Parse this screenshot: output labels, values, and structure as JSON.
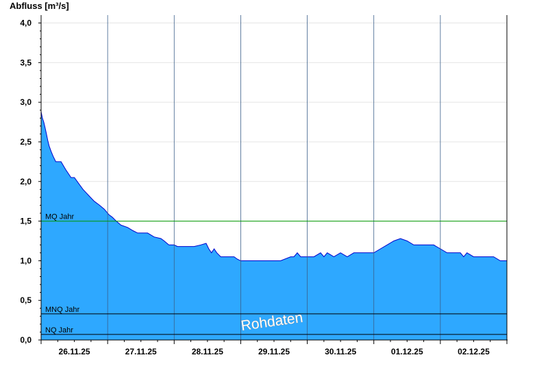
{
  "chart_data": {
    "type": "area",
    "title": "",
    "ylabel": "Abfluss [m³/s]",
    "xlabel": "",
    "ylim": [
      0,
      4.1
    ],
    "yticks": [
      "0,0",
      "0,5",
      "1,0",
      "1,5",
      "2,0",
      "2,5",
      "3,0",
      "3,5",
      "4,0"
    ],
    "x_ticks": [
      "26.11.25",
      "27.11.25",
      "28.11.25",
      "29.11.25",
      "30.11.25",
      "01.12.25",
      "02.12.25"
    ],
    "x_range_days": [
      0,
      7
    ],
    "grid": "horizontal light grey, vertical lines at midnight",
    "series": [
      {
        "x": [
          0.0,
          0.02,
          0.04,
          0.06,
          0.08,
          0.1,
          0.12,
          0.15,
          0.18,
          0.22,
          0.3,
          0.37,
          0.45,
          0.5,
          0.56,
          0.63,
          0.72,
          0.8,
          0.88,
          0.95,
          1.02,
          1.07,
          1.13,
          1.2,
          1.3,
          1.38,
          1.45,
          1.53,
          1.6,
          1.7,
          1.8,
          1.85,
          1.92,
          2.0,
          2.05,
          2.1,
          2.2,
          2.3,
          2.4,
          2.48,
          2.52,
          2.56,
          2.6,
          2.64,
          2.7,
          2.8,
          2.9,
          2.95,
          3.0,
          3.1,
          3.4,
          3.6,
          3.75,
          3.8,
          3.85,
          3.9,
          4.0,
          4.1,
          4.2,
          4.25,
          4.3,
          4.4,
          4.5,
          4.6,
          4.7,
          4.8,
          4.9,
          5.0,
          5.1,
          5.2,
          5.3,
          5.4,
          5.5,
          5.6,
          5.7,
          5.8,
          5.9,
          6.0,
          6.1,
          6.2,
          6.3,
          6.35,
          6.4,
          6.5,
          6.6,
          6.7,
          6.8,
          6.9,
          6.95,
          7.0
        ],
        "values": [
          2.88,
          2.8,
          2.75,
          2.68,
          2.6,
          2.52,
          2.45,
          2.38,
          2.32,
          2.25,
          2.25,
          2.15,
          2.05,
          2.05,
          1.98,
          1.9,
          1.82,
          1.75,
          1.7,
          1.65,
          1.58,
          1.55,
          1.5,
          1.45,
          1.42,
          1.38,
          1.35,
          1.35,
          1.35,
          1.3,
          1.28,
          1.25,
          1.2,
          1.2,
          1.18,
          1.18,
          1.18,
          1.18,
          1.2,
          1.22,
          1.15,
          1.1,
          1.15,
          1.1,
          1.05,
          1.05,
          1.05,
          1.02,
          1.0,
          1.0,
          1.0,
          1.0,
          1.05,
          1.05,
          1.1,
          1.05,
          1.05,
          1.05,
          1.1,
          1.05,
          1.1,
          1.05,
          1.1,
          1.05,
          1.1,
          1.1,
          1.1,
          1.1,
          1.15,
          1.2,
          1.25,
          1.28,
          1.25,
          1.2,
          1.2,
          1.2,
          1.2,
          1.15,
          1.1,
          1.1,
          1.1,
          1.05,
          1.1,
          1.05,
          1.05,
          1.05,
          1.05,
          1.0,
          1.0,
          1.0
        ]
      }
    ],
    "reference_lines": [
      {
        "label": "MQ Jahr",
        "value": 1.5,
        "color": "#009900"
      },
      {
        "label": "MNQ Jahr",
        "value": 0.33,
        "color": "#000000"
      },
      {
        "label": "NQ Jahr",
        "value": 0.07,
        "color": "#000000"
      }
    ],
    "watermark": "Rohdaten",
    "colors": {
      "fill": "#2ea8ff",
      "line": "#0000cc",
      "grid": "#e4e4e4"
    }
  }
}
